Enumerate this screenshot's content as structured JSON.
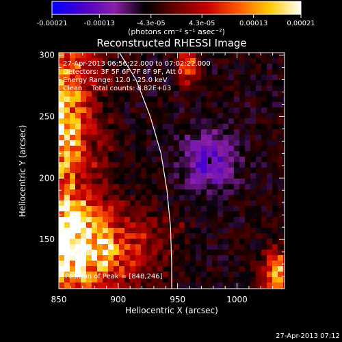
{
  "colorbar": {
    "tick_labels": [
      "-0.00021",
      "-0.00013",
      "-4.3e-05",
      "4.3e-05",
      "0.00013",
      "0.00021"
    ],
    "tick_values": [
      -0.00021,
      -0.00013,
      -4.3e-05,
      4.3e-05,
      0.00013,
      0.00021
    ],
    "range": [
      -0.00021,
      0.00021
    ],
    "unit_label": "(photons cm⁻² s⁻¹ asec⁻²)",
    "colormap_stops": [
      "#0000ff",
      "#4a00c8",
      "#8b1fa8",
      "#000000",
      "#6e0000",
      "#c80000",
      "#ff5a00",
      "#ffcc00",
      "#ffffff"
    ]
  },
  "chart_data": {
    "type": "heatmap",
    "title": "Reconstructed RHESSI Image",
    "xlabel": "Heliocentric X (arcsec)",
    "ylabel": "Heliocentric Y (arcsec)",
    "xlim": [
      850,
      1040
    ],
    "ylim": [
      110,
      302
    ],
    "x_ticks": [
      850,
      900,
      950,
      1000
    ],
    "y_ticks": [
      150,
      200,
      250,
      300
    ],
    "grid": false,
    "limb_curve": [
      [
        901,
        302
      ],
      [
        915,
        280
      ],
      [
        927,
        250
      ],
      [
        936,
        220
      ],
      [
        941,
        190
      ],
      [
        944,
        160
      ],
      [
        945,
        130
      ],
      [
        945,
        110
      ]
    ],
    "peak_position": [
      848,
      246
    ],
    "minimum_marker": [
      977,
      214
    ],
    "annotations": {
      "time_range": "27-Apr-2013 06:56:22.000 to 07:02:22.000",
      "detectors": "Detectors: 3F 5F 6F 7F 8F 9F, Att 0",
      "energy_range": "Energy Range: 12.0 - 25.0 keV",
      "algorithm": "Clean",
      "total_counts": "Total counts: 8.82E+03",
      "peak": "Position of Peak = [848,246]"
    }
  },
  "footer": {
    "timestamp": "27-Apr-2013 07:12"
  }
}
